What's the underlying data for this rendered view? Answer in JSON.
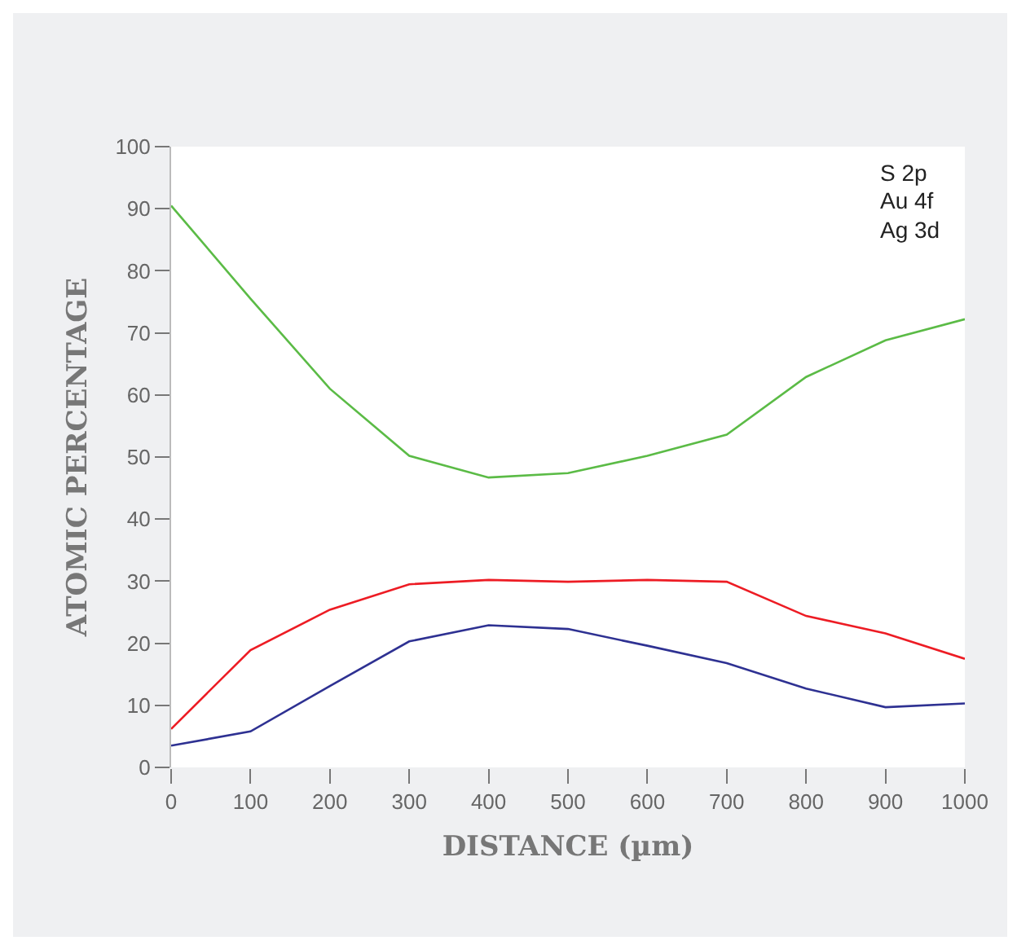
{
  "chart_data": {
    "type": "line",
    "xlabel": "DISTANCE (µm)",
    "ylabel": "ATOMIC PERCENTAGE",
    "x": [
      0,
      100,
      200,
      300,
      400,
      500,
      600,
      700,
      800,
      900,
      1000
    ],
    "series": [
      {
        "color": "#2e3192",
        "values": [
          3.5,
          5.8,
          13.1,
          20.3,
          22.9,
          22.3,
          19.6,
          16.8,
          12.7,
          9.7,
          10.3
        ]
      },
      {
        "color": "#ed1c24",
        "values": [
          6.2,
          18.9,
          25.4,
          29.5,
          30.2,
          29.9,
          30.2,
          29.9,
          24.4,
          21.6,
          17.5
        ]
      },
      {
        "color": "#5bbb46",
        "values": [
          90.5,
          75.5,
          61,
          50.2,
          46.7,
          47.4,
          50.2,
          53.6,
          62.9,
          68.8,
          72.2
        ]
      }
    ],
    "annotations": [
      "S 2p",
      "Au 4f",
      "Ag 3d"
    ],
    "xlim": [
      0,
      1000
    ],
    "xticks": [
      0,
      100,
      200,
      300,
      400,
      500,
      600,
      700,
      800,
      900,
      1000
    ],
    "ylim": [
      0,
      100
    ],
    "yticks": [
      0,
      10,
      20,
      30,
      40,
      50,
      60,
      70,
      80,
      90,
      100
    ],
    "grid": false,
    "marker": "none",
    "line_style": "solid"
  }
}
